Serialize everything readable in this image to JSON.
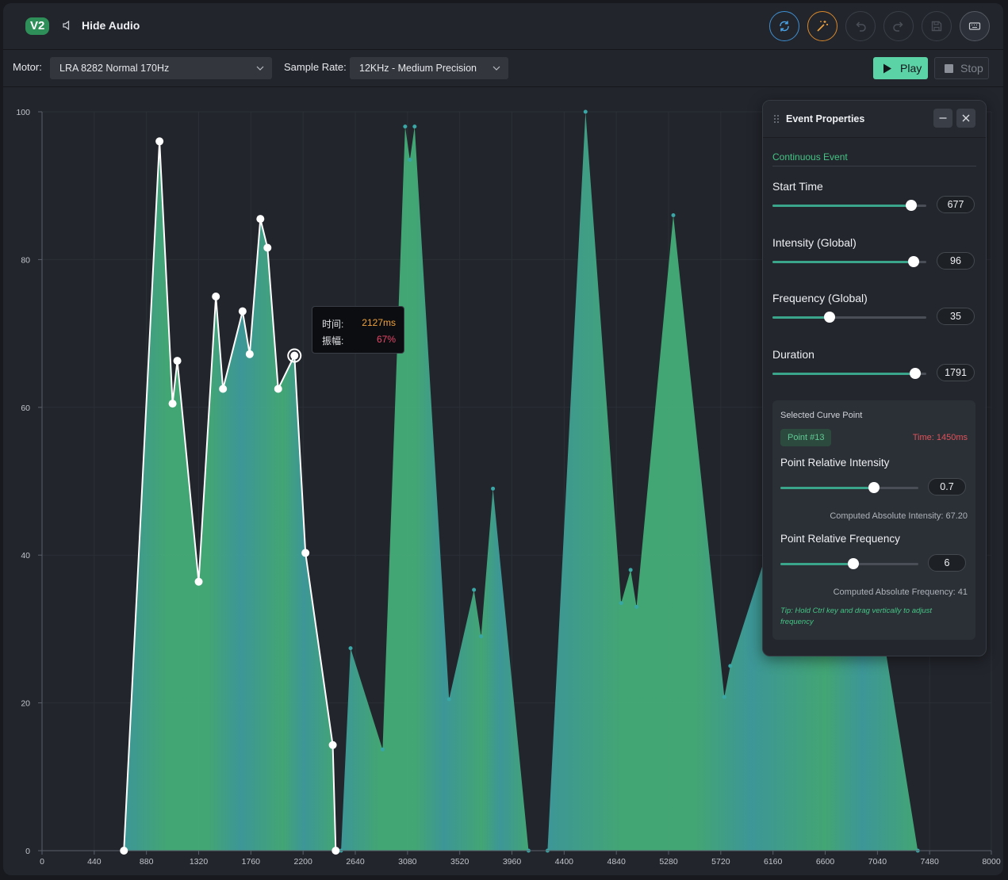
{
  "header": {
    "version_badge": "V2",
    "hide_audio_label": "Hide Audio",
    "icons": [
      "refresh-icon",
      "magic-wand-icon",
      "undo-icon",
      "redo-icon",
      "save-icon",
      "keyboard-icon"
    ]
  },
  "toolbar": {
    "motor_label": "Motor:",
    "motor_value": "LRA 8282 Normal 170Hz",
    "sample_rate_label": "Sample Rate:",
    "sample_rate_value": "12KHz - Medium Precision",
    "play_label": "Play",
    "stop_label": "Stop"
  },
  "tooltip": {
    "time_key": "时间:",
    "time_value": "2127ms",
    "amp_key": "振幅:",
    "amp_value": "67%"
  },
  "panel": {
    "title": "Event Properties",
    "event_type": "Continuous Event",
    "fields": [
      {
        "label": "Start Time",
        "value": "677",
        "fraction": 0.9
      },
      {
        "label": "Intensity (Global)",
        "value": "96",
        "fraction": 0.92
      },
      {
        "label": "Frequency (Global)",
        "value": "35",
        "fraction": 0.37
      },
      {
        "label": "Duration",
        "value": "1791",
        "fraction": 0.93
      }
    ],
    "selected": {
      "title": "Selected Curve Point",
      "point_badge": "Point #13",
      "time": "Time: 1450ms",
      "intensity_label": "Point Relative Intensity",
      "intensity_value": "0.7",
      "intensity_fraction": 0.68,
      "computed_intensity": "Computed Absolute Intensity: 67.20",
      "frequency_label": "Point Relative Frequency",
      "frequency_value": "6",
      "frequency_fraction": 0.53,
      "computed_frequency": "Computed Absolute Frequency: 41",
      "tip": "Tip: Hold Ctrl key and drag vertically to adjust frequency"
    }
  },
  "colors": {
    "accent": "#5bd3a6",
    "area_green": "#45b07a",
    "area_teal": "#3fa0a0",
    "tooltip_time": "#f0a23c",
    "tooltip_amp": "#e8476a",
    "time_red": "#e0525a"
  },
  "chart_data": {
    "type": "area",
    "xlim": [
      0,
      8000
    ],
    "ylim": [
      0,
      100
    ],
    "x_ticks": [
      "0",
      "440",
      "880",
      "1320",
      "1760",
      "2200",
      "2640",
      "3080",
      "3520",
      "3960",
      "4400",
      "4840",
      "5280",
      "5720",
      "6160",
      "6600",
      "7040",
      "7480",
      "8000"
    ],
    "y_ticks": [
      "0",
      "20",
      "40",
      "60",
      "80",
      "100"
    ],
    "events": [
      {
        "name": "selected-event",
        "points": [
          [
            690,
            0
          ],
          [
            990,
            96
          ],
          [
            1100,
            60.5
          ],
          [
            1140,
            66.3
          ],
          [
            1320,
            36.4
          ],
          [
            1465,
            75
          ],
          [
            1525,
            62.5
          ],
          [
            1690,
            73
          ],
          [
            1750,
            67.2
          ],
          [
            1840,
            85.5
          ],
          [
            1900,
            81.6
          ],
          [
            1990,
            62.5
          ],
          [
            2127,
            67
          ],
          [
            2220,
            40.3
          ],
          [
            2450,
            14.3
          ],
          [
            2475,
            0
          ]
        ]
      },
      {
        "name": "event-2",
        "points": [
          [
            2520,
            0
          ],
          [
            2600,
            27.4
          ],
          [
            2870,
            13.7
          ],
          [
            3060,
            98
          ],
          [
            3100,
            93.5
          ],
          [
            3140,
            98
          ],
          [
            3430,
            20.5
          ],
          [
            3640,
            35.3
          ],
          [
            3700,
            29
          ],
          [
            3800,
            49
          ],
          [
            4100,
            0
          ]
        ]
      },
      {
        "name": "event-3",
        "points": [
          [
            4260,
            0
          ],
          [
            4580,
            100
          ],
          [
            4880,
            33.5
          ],
          [
            4960,
            38
          ],
          [
            5010,
            33
          ],
          [
            5320,
            86
          ],
          [
            5750,
            20.8
          ],
          [
            5800,
            25
          ],
          [
            6500,
            60
          ],
          [
            6700,
            70
          ],
          [
            6980,
            40
          ],
          [
            7380,
            0
          ]
        ]
      }
    ]
  }
}
